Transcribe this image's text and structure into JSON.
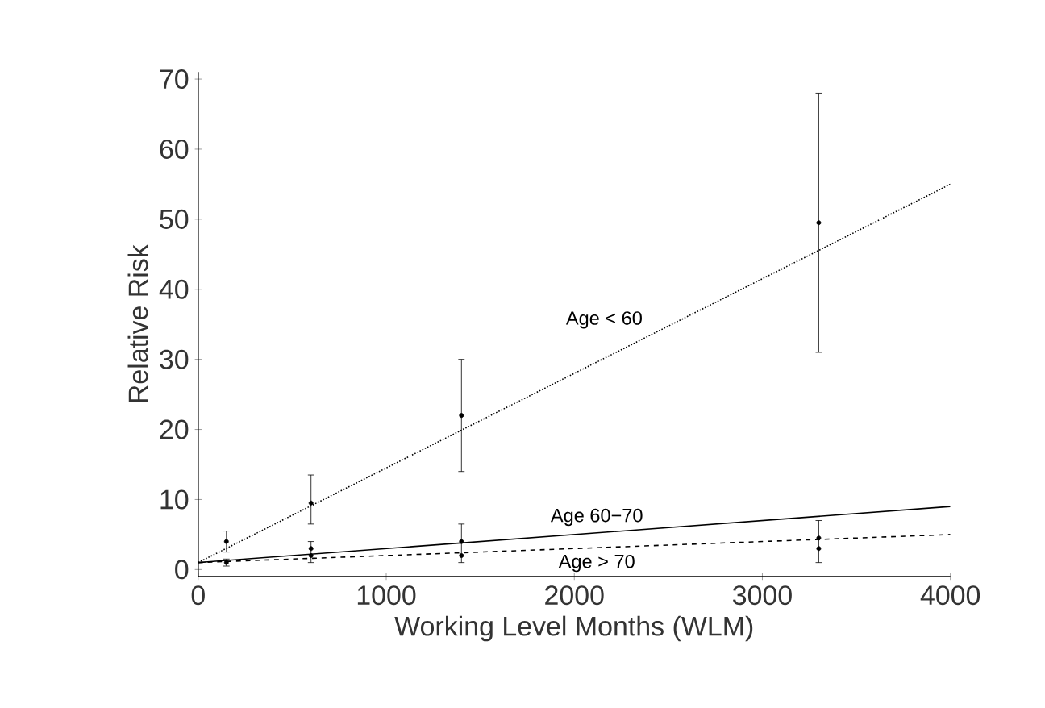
{
  "chart_data": {
    "type": "line",
    "xlabel": "Working Level Months (WLM)",
    "ylabel": "Relative Risk",
    "xlim": [
      0,
      4000
    ],
    "ylim": [
      -1,
      71
    ],
    "xticks": [
      0,
      1000,
      2000,
      3000,
      4000
    ],
    "yticks": [
      0,
      10,
      20,
      30,
      40,
      50,
      60,
      70
    ],
    "grid": false,
    "legend": false,
    "series": [
      {
        "name": "Age < 60",
        "line_style": "dotted",
        "marker": "none",
        "color": "#000000",
        "x": [
          0,
          4000
        ],
        "values": [
          1,
          55
        ]
      },
      {
        "name": "Age 60−70",
        "line_style": "solid",
        "marker": "none",
        "color": "#000000",
        "x": [
          0,
          4000
        ],
        "values": [
          1,
          9
        ]
      },
      {
        "name": "Age > 70",
        "line_style": "dashed",
        "marker": "none",
        "color": "#000000",
        "x": [
          0,
          4000
        ],
        "values": [
          1,
          5
        ]
      },
      {
        "type": "scatter",
        "marker": "circle",
        "color": "#000000",
        "x": [
          150,
          600,
          1400,
          3300
        ],
        "values": [
          4,
          9.5,
          22,
          49.5
        ],
        "errors": [
          [
            2.5,
            5.5
          ],
          [
            6.5,
            13.5
          ],
          [
            14,
            30
          ],
          [
            31,
            68
          ]
        ]
      },
      {
        "type": "scatter",
        "marker": "circle",
        "color": "#000000",
        "x": [
          150,
          600,
          1400,
          3300
        ],
        "values": [
          1,
          3,
          4,
          4.5
        ],
        "errors": [
          [
            0.5,
            1.5
          ],
          [
            1,
            4
          ],
          [
            1,
            6.5
          ],
          [
            1,
            7
          ]
        ]
      },
      {
        "type": "scatter",
        "marker": "circle",
        "color": "#000000",
        "x": [
          600,
          1400,
          3300
        ],
        "values": [
          2,
          2,
          3
        ]
      }
    ]
  }
}
